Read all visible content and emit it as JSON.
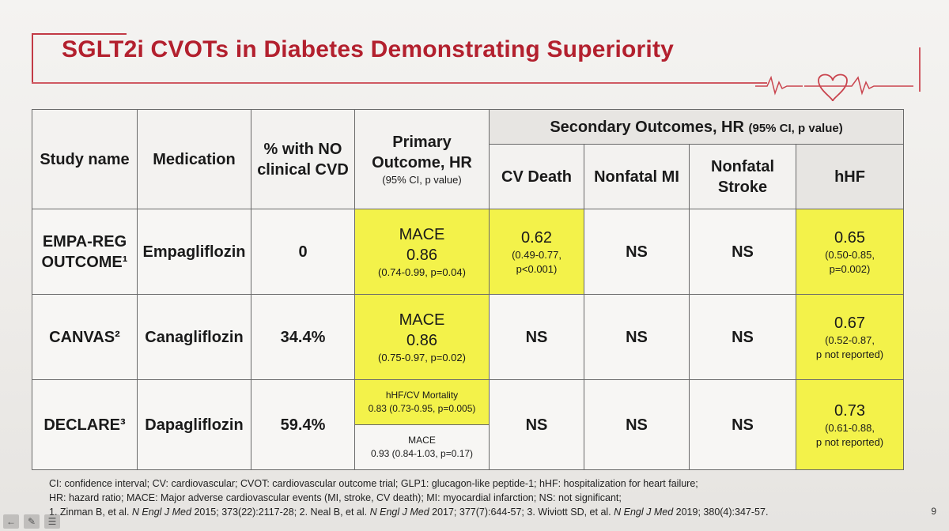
{
  "title": "SGLT2i CVOTs in Diabetes Demonstrating Superiority",
  "table": {
    "headers": {
      "study_name": "Study name",
      "medication": "Medication",
      "no_cvd": "% with NO clinical CVD",
      "primary": "Primary Outcome, HR",
      "primary_sub": "(95% CI, p value)",
      "secondary": "Secondary Outcomes, HR",
      "secondary_sub": "(95% CI, p value)",
      "cv_death": "CV Death",
      "nonfatal_mi": "Nonfatal MI",
      "nonfatal_stroke": "Nonfatal Stroke",
      "hhf": "hHF"
    },
    "rows": [
      {
        "study": "EMPA-REG OUTCOME¹",
        "medication": "Empagliflozin",
        "no_cvd": "0",
        "primary_label": "MACE",
        "primary_hr": "0.86",
        "primary_ci": "(0.74-0.99, p=0.04)",
        "cv_death_hr": "0.62",
        "cv_death_ci1": "(0.49-0.77,",
        "cv_death_ci2": "p<0.001)",
        "mi": "NS",
        "stroke": "NS",
        "hhf_hr": "0.65",
        "hhf_ci1": "(0.50-0.85,",
        "hhf_ci2": "p=0.002)"
      },
      {
        "study": "CANVAS²",
        "medication": "Canagliflozin",
        "no_cvd": "34.4%",
        "primary_label": "MACE",
        "primary_hr": "0.86",
        "primary_ci": "(0.75-0.97, p=0.02)",
        "cv_death": "NS",
        "mi": "NS",
        "stroke": "NS",
        "hhf_hr": "0.67",
        "hhf_ci1": "(0.52-0.87,",
        "hhf_ci2": "p not reported)"
      },
      {
        "study": "DECLARE³",
        "medication": "Dapagliflozin",
        "no_cvd": "59.4%",
        "primary_top_label": "hHF/CV Mortality",
        "primary_top_val": "0.83 (0.73-0.95, p=0.005)",
        "primary_bot_label": "MACE",
        "primary_bot_val": "0.93 (0.84-1.03, p=0.17)",
        "cv_death": "NS",
        "mi": "NS",
        "stroke": "NS",
        "hhf_hr": "0.73",
        "hhf_ci1": "(0.61-0.88,",
        "hhf_ci2": "p not reported)"
      }
    ]
  },
  "footnotes": {
    "line1": "CI: confidence interval; CV: cardiovascular; CVOT: cardiovascular outcome trial; GLP1: glucagon-like peptide-1; hHF: hospitalization for heart failure;",
    "line2": "HR: hazard ratio; MACE: Major adverse cardiovascular events (MI, stroke, CV death); MI: myocardial infarction; NS: not significant;",
    "ref1_authors": "1. Zinman B, et al.",
    "ref1_journal": "N Engl J Med",
    "ref1_rest": "2015; 373(22):2117-28;",
    "ref2_authors": "2. Neal B, et al.",
    "ref2_journal": "N Engl J Med",
    "ref2_rest": "2017; 377(7):644-57;",
    "ref3_authors": "3. Wiviott SD, et al.",
    "ref3_journal": "N Engl J Med",
    "ref3_rest": "2019; 380(4):347-57."
  },
  "page_number": "9",
  "colors": {
    "title": "#b3202e",
    "highlight": "#f3f24a",
    "frame": "#c23a45"
  },
  "toolbar_icons": [
    "arrow-left-icon",
    "pen-icon",
    "menu-icon"
  ]
}
